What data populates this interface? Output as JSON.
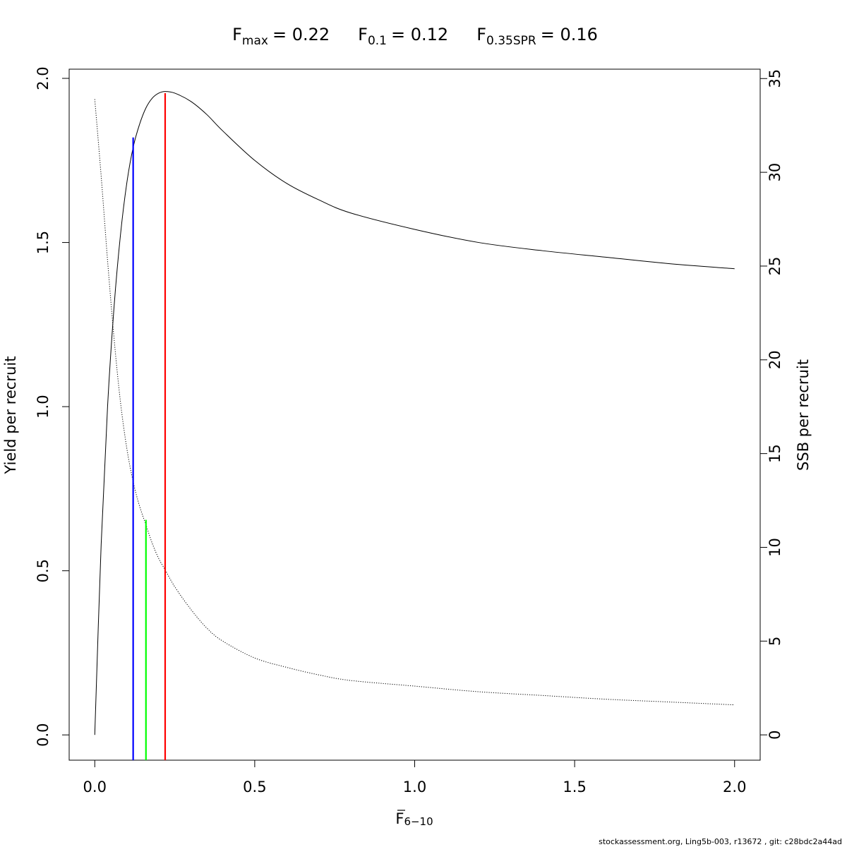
{
  "chart_data": {
    "type": "line",
    "title": {
      "fmax": {
        "symbol": "F",
        "sub": "max",
        "value": "= 0.22"
      },
      "f01": {
        "symbol": "F",
        "sub": "0.1",
        "value": "= 0.12"
      },
      "fspr": {
        "symbol": "F",
        "sub": "0.35SPR",
        "value": "= 0.16"
      }
    },
    "xlabel": {
      "symbol": "F",
      "sub": "6−10"
    },
    "ylabel": "Yield per recruit",
    "y2label": "SSB per recruit",
    "xlim": [
      -0.08,
      2.08
    ],
    "ylim": [
      -0.077,
      2.028
    ],
    "y2lim": [
      -1.35,
      35.5
    ],
    "xticks": [
      "0.0",
      "0.5",
      "1.0",
      "1.5",
      "2.0"
    ],
    "yticks": [
      "0.0",
      "0.5",
      "1.0",
      "1.5",
      "2.0"
    ],
    "y2ticks": [
      "0",
      "5",
      "10",
      "15",
      "20",
      "25",
      "30",
      "35"
    ],
    "grid": false,
    "legend": "none",
    "series": [
      {
        "axis": "left",
        "color": "#000000",
        "dash": "solid",
        "x": [
          0.0,
          0.02,
          0.04,
          0.06,
          0.08,
          0.1,
          0.12,
          0.14,
          0.16,
          0.18,
          0.2,
          0.22,
          0.25,
          0.3,
          0.35,
          0.4,
          0.5,
          0.6,
          0.7,
          0.8,
          1.0,
          1.2,
          1.4,
          1.6,
          1.8,
          2.0
        ],
        "y": [
          0.0,
          0.58,
          1.0,
          1.3,
          1.52,
          1.68,
          1.79,
          1.86,
          1.91,
          1.94,
          1.955,
          1.96,
          1.955,
          1.93,
          1.89,
          1.84,
          1.75,
          1.68,
          1.63,
          1.59,
          1.54,
          1.5,
          1.475,
          1.455,
          1.435,
          1.42
        ]
      },
      {
        "axis": "right",
        "color": "#000000",
        "dash": "dotted",
        "x": [
          0.0,
          0.02,
          0.04,
          0.06,
          0.08,
          0.1,
          0.12,
          0.14,
          0.16,
          0.18,
          0.2,
          0.22,
          0.25,
          0.3,
          0.35,
          0.4,
          0.5,
          0.6,
          0.7,
          0.8,
          1.0,
          1.2,
          1.4,
          1.6,
          1.8,
          2.0
        ],
        "y": [
          33.9,
          29.8,
          25.3,
          21.2,
          17.8,
          15.3,
          13.5,
          12.2,
          11.2,
          10.2,
          9.4,
          8.8,
          7.9,
          6.7,
          5.7,
          5.0,
          4.1,
          3.6,
          3.2,
          2.9,
          2.6,
          2.3,
          2.1,
          1.9,
          1.75,
          1.6
        ]
      }
    ],
    "reference_lines": [
      {
        "label": "F0.1",
        "color": "#0000ff",
        "x": 0.12,
        "ytop": 1.82
      },
      {
        "label": "F0.35SPR",
        "color": "#00ff00",
        "x": 0.16,
        "ytop": 0.655
      },
      {
        "label": "Fmax",
        "color": "#ff0000",
        "x": 0.22,
        "ytop": 1.955
      }
    ]
  },
  "footer": "stockassessment.org, Ling5b-003, r13672 , git: c28bdc2a44ad"
}
